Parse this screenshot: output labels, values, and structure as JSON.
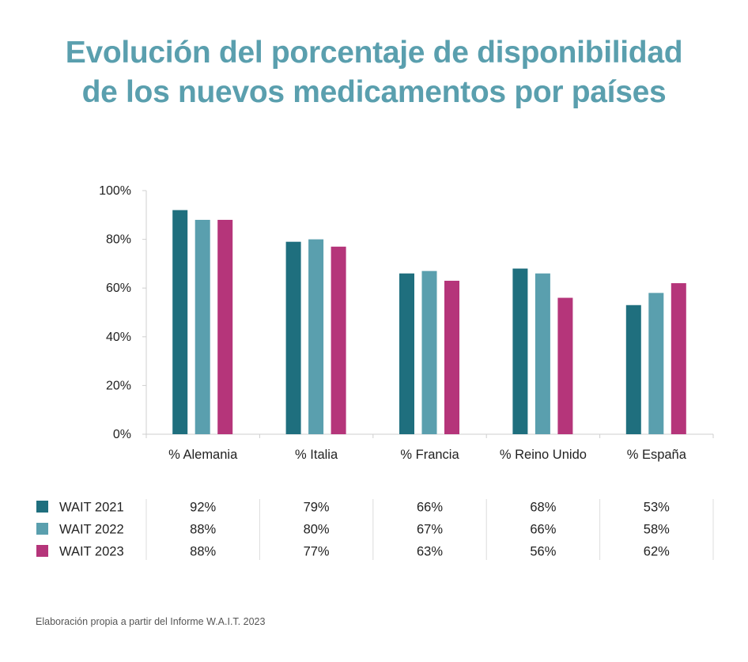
{
  "title": {
    "line1": "Evolución del porcentaje de disponibilidad",
    "line2": "de los nuevos medicamentos por países"
  },
  "source": "Elaboración propia a partir del Informe W.A.I.T. 2023",
  "colors": {
    "title": "#5a9fae",
    "WAIT 2021": "#1f6f7e",
    "WAIT 2022": "#5a9fae",
    "WAIT 2023": "#b5357a"
  },
  "chart_data": {
    "type": "bar",
    "title": "Evolución del porcentaje de disponibilidad de los nuevos medicamentos por países",
    "categories": [
      "% Alemania",
      "% Italia",
      "% Francia",
      "% Reino Unido",
      "% España"
    ],
    "series": [
      {
        "name": "WAIT 2021",
        "values": [
          92,
          79,
          66,
          68,
          53
        ],
        "labels": [
          "92%",
          "79%",
          "66%",
          "68%",
          "53%"
        ],
        "color": "#1f6f7e"
      },
      {
        "name": "WAIT 2022",
        "values": [
          88,
          80,
          67,
          66,
          58
        ],
        "labels": [
          "88%",
          "80%",
          "67%",
          "66%",
          "58%"
        ],
        "color": "#5a9fae"
      },
      {
        "name": "WAIT 2023",
        "values": [
          88,
          77,
          63,
          56,
          62
        ],
        "labels": [
          "88%",
          "77%",
          "63%",
          "56%",
          "62%"
        ],
        "color": "#b5357a"
      }
    ],
    "yticks": [
      "0%",
      "20%",
      "40%",
      "60%",
      "80%",
      "100%"
    ],
    "ylim": [
      0,
      100
    ],
    "xlabel": "",
    "ylabel": "",
    "grid": false,
    "legend": "data table below chart"
  }
}
